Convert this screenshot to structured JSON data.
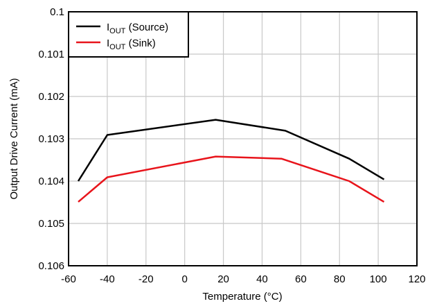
{
  "chart_data": {
    "type": "line",
    "xlabel": "Temperature (°C)",
    "ylabel": "Output Drive Current (mA)",
    "xlim": [
      -60,
      120
    ],
    "ylim": [
      0.1,
      0.106
    ],
    "y_inverted": true,
    "x_ticks": [
      "-60",
      "-40",
      "-20",
      "0",
      "20",
      "40",
      "60",
      "80",
      "100",
      "120"
    ],
    "y_ticks": [
      "0.1",
      "0.101",
      "0.102",
      "0.103",
      "0.104",
      "0.105",
      "0.106"
    ],
    "grid": true,
    "legend_position": "top-left",
    "series": [
      {
        "name_main": "I",
        "name_sub": "OUT",
        "name_rest": " (Source)",
        "color": "#000000",
        "x": [
          -55,
          -40,
          16,
          52,
          85,
          103
        ],
        "y": [
          0.104,
          0.10291,
          0.10255,
          0.10281,
          0.10347,
          0.10396
        ]
      },
      {
        "name_main": "I",
        "name_sub": "OUT",
        "name_rest": " (Sink)",
        "color": "#e8141b",
        "x": [
          -55,
          -40,
          16,
          50,
          85,
          103
        ],
        "y": [
          0.10449,
          0.10391,
          0.10342,
          0.10347,
          0.104,
          0.10449
        ]
      }
    ]
  }
}
